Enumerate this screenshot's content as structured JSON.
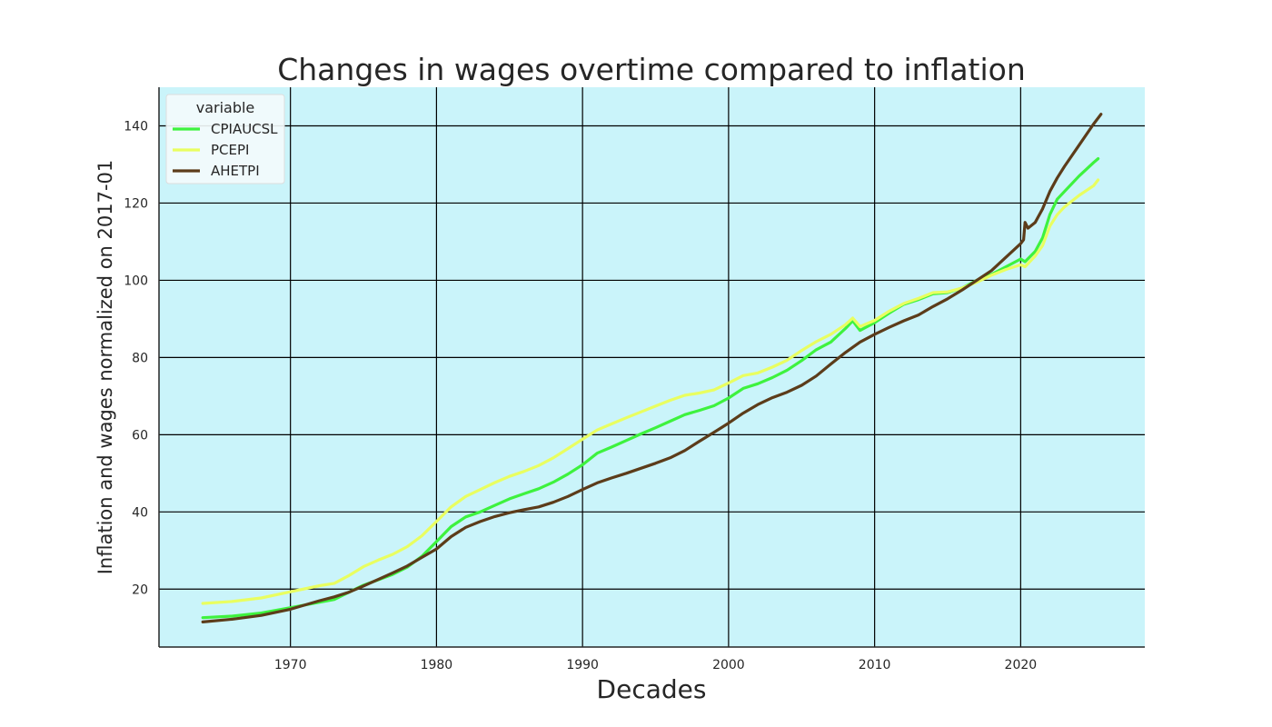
{
  "chart_data": {
    "type": "line",
    "title": "Changes in wages overtime compared to inflation",
    "xlabel": "Decades",
    "ylabel": "Inflation and wages normalized on 2017-01",
    "xlim": [
      1961,
      2028.5
    ],
    "ylim": [
      5,
      150
    ],
    "x_ticks": [
      1970,
      1980,
      1990,
      2000,
      2010,
      2020
    ],
    "y_ticks": [
      20,
      40,
      60,
      80,
      100,
      120,
      140
    ],
    "grid": true,
    "legend": {
      "title": "variable",
      "placement": "top-left"
    },
    "colors": {
      "plot_background": "#caf4fa",
      "grid": "#000000"
    },
    "series": [
      {
        "name": "CPIAUCSL",
        "color": "#3ef23e",
        "points": [
          [
            1964.0,
            12.6
          ],
          [
            1966.0,
            13.0
          ],
          [
            1968.0,
            13.8
          ],
          [
            1970.0,
            15.2
          ],
          [
            1972.0,
            16.6
          ],
          [
            1973.0,
            17.3
          ],
          [
            1974.0,
            19.2
          ],
          [
            1975.0,
            21.0
          ],
          [
            1976.0,
            22.4
          ],
          [
            1977.0,
            23.8
          ],
          [
            1978.0,
            25.7
          ],
          [
            1979.0,
            28.5
          ],
          [
            1980.0,
            32.3
          ],
          [
            1981.0,
            36.2
          ],
          [
            1982.0,
            38.7
          ],
          [
            1983.0,
            40.0
          ],
          [
            1984.0,
            41.7
          ],
          [
            1985.0,
            43.4
          ],
          [
            1986.0,
            44.7
          ],
          [
            1987.0,
            46.0
          ],
          [
            1988.0,
            47.7
          ],
          [
            1989.0,
            49.8
          ],
          [
            1990.0,
            52.2
          ],
          [
            1991.0,
            55.2
          ],
          [
            1992.0,
            56.8
          ],
          [
            1993.0,
            58.5
          ],
          [
            1994.0,
            60.2
          ],
          [
            1995.0,
            61.8
          ],
          [
            1996.0,
            63.5
          ],
          [
            1997.0,
            65.2
          ],
          [
            1998.0,
            66.3
          ],
          [
            1999.0,
            67.5
          ],
          [
            2000.0,
            69.5
          ],
          [
            2001.0,
            72.0
          ],
          [
            2002.0,
            73.2
          ],
          [
            2003.0,
            74.8
          ],
          [
            2004.0,
            76.7
          ],
          [
            2005.0,
            79.2
          ],
          [
            2006.0,
            82.0
          ],
          [
            2007.0,
            84.0
          ],
          [
            2008.0,
            87.5
          ],
          [
            2008.5,
            89.5
          ],
          [
            2009.0,
            87.0
          ],
          [
            2010.0,
            89.0
          ],
          [
            2011.0,
            91.5
          ],
          [
            2012.0,
            93.8
          ],
          [
            2013.0,
            95.0
          ],
          [
            2014.0,
            96.5
          ],
          [
            2015.0,
            96.8
          ],
          [
            2016.0,
            98.0
          ],
          [
            2017.0,
            100.0
          ],
          [
            2018.0,
            101.5
          ],
          [
            2019.0,
            103.5
          ],
          [
            2020.0,
            105.5
          ],
          [
            2020.3,
            104.8
          ],
          [
            2021.0,
            107.5
          ],
          [
            2021.5,
            111.0
          ],
          [
            2022.0,
            117.0
          ],
          [
            2022.5,
            121.0
          ],
          [
            2023.0,
            123.0
          ],
          [
            2024.0,
            127.0
          ],
          [
            2025.0,
            130.5
          ],
          [
            2025.3,
            131.5
          ]
        ]
      },
      {
        "name": "PCEPI",
        "color": "#e9fe60",
        "points": [
          [
            1964.0,
            16.3
          ],
          [
            1966.0,
            16.8
          ],
          [
            1968.0,
            17.7
          ],
          [
            1970.0,
            19.3
          ],
          [
            1972.0,
            20.9
          ],
          [
            1973.0,
            21.5
          ],
          [
            1974.0,
            23.5
          ],
          [
            1975.0,
            25.8
          ],
          [
            1976.0,
            27.5
          ],
          [
            1977.0,
            29.0
          ],
          [
            1978.0,
            31.0
          ],
          [
            1979.0,
            33.8
          ],
          [
            1980.0,
            37.5
          ],
          [
            1981.0,
            41.3
          ],
          [
            1982.0,
            44.0
          ],
          [
            1983.0,
            45.8
          ],
          [
            1984.0,
            47.6
          ],
          [
            1985.0,
            49.2
          ],
          [
            1986.0,
            50.5
          ],
          [
            1987.0,
            52.0
          ],
          [
            1988.0,
            54.0
          ],
          [
            1989.0,
            56.4
          ],
          [
            1990.0,
            58.8
          ],
          [
            1991.0,
            61.2
          ],
          [
            1992.0,
            62.8
          ],
          [
            1993.0,
            64.4
          ],
          [
            1994.0,
            65.9
          ],
          [
            1995.0,
            67.4
          ],
          [
            1996.0,
            68.9
          ],
          [
            1997.0,
            70.2
          ],
          [
            1998.0,
            70.8
          ],
          [
            1999.0,
            71.6
          ],
          [
            2000.0,
            73.4
          ],
          [
            2001.0,
            75.3
          ],
          [
            2002.0,
            76.0
          ],
          [
            2003.0,
            77.5
          ],
          [
            2004.0,
            79.3
          ],
          [
            2005.0,
            81.8
          ],
          [
            2006.0,
            84.1
          ],
          [
            2007.0,
            86.0
          ],
          [
            2008.0,
            88.5
          ],
          [
            2008.5,
            90.2
          ],
          [
            2009.0,
            88.0
          ],
          [
            2010.0,
            89.6
          ],
          [
            2011.0,
            92.0
          ],
          [
            2012.0,
            94.0
          ],
          [
            2013.0,
            95.3
          ],
          [
            2014.0,
            96.8
          ],
          [
            2015.0,
            97.0
          ],
          [
            2016.0,
            98.0
          ],
          [
            2017.0,
            99.5
          ],
          [
            2018.0,
            101.3
          ],
          [
            2019.0,
            102.8
          ],
          [
            2020.0,
            104.0
          ],
          [
            2020.3,
            103.5
          ],
          [
            2021.0,
            106.3
          ],
          [
            2021.5,
            109.0
          ],
          [
            2022.0,
            114.0
          ],
          [
            2022.5,
            117.0
          ],
          [
            2023.0,
            119.0
          ],
          [
            2024.0,
            122.0
          ],
          [
            2025.0,
            124.5
          ],
          [
            2025.3,
            126.0
          ]
        ]
      },
      {
        "name": "AHETPI",
        "color": "#5c3c1a",
        "points": [
          [
            1964.0,
            11.5
          ],
          [
            1966.0,
            12.2
          ],
          [
            1968.0,
            13.2
          ],
          [
            1970.0,
            14.8
          ],
          [
            1972.0,
            17.0
          ],
          [
            1973.0,
            18.0
          ],
          [
            1974.0,
            19.2
          ],
          [
            1975.0,
            20.8
          ],
          [
            1976.0,
            22.5
          ],
          [
            1977.0,
            24.2
          ],
          [
            1978.0,
            26.0
          ],
          [
            1979.0,
            28.2
          ],
          [
            1980.0,
            30.4
          ],
          [
            1981.0,
            33.6
          ],
          [
            1982.0,
            36.0
          ],
          [
            1983.0,
            37.5
          ],
          [
            1984.0,
            38.8
          ],
          [
            1985.0,
            39.8
          ],
          [
            1986.0,
            40.6
          ],
          [
            1987.0,
            41.3
          ],
          [
            1988.0,
            42.5
          ],
          [
            1989.0,
            44.0
          ],
          [
            1990.0,
            45.8
          ],
          [
            1991.0,
            47.5
          ],
          [
            1992.0,
            48.8
          ],
          [
            1993.0,
            50.0
          ],
          [
            1994.0,
            51.3
          ],
          [
            1995.0,
            52.6
          ],
          [
            1996.0,
            54.0
          ],
          [
            1997.0,
            55.9
          ],
          [
            1998.0,
            58.3
          ],
          [
            1999.0,
            60.6
          ],
          [
            2000.0,
            63.0
          ],
          [
            2001.0,
            65.6
          ],
          [
            2002.0,
            67.8
          ],
          [
            2003.0,
            69.6
          ],
          [
            2004.0,
            71.0
          ],
          [
            2005.0,
            72.8
          ],
          [
            2006.0,
            75.2
          ],
          [
            2007.0,
            78.3
          ],
          [
            2008.0,
            81.3
          ],
          [
            2009.0,
            84.0
          ],
          [
            2010.0,
            86.0
          ],
          [
            2011.0,
            87.8
          ],
          [
            2012.0,
            89.5
          ],
          [
            2013.0,
            91.0
          ],
          [
            2014.0,
            93.2
          ],
          [
            2015.0,
            95.2
          ],
          [
            2016.0,
            97.5
          ],
          [
            2017.0,
            100.0
          ],
          [
            2018.0,
            102.5
          ],
          [
            2019.0,
            106.0
          ],
          [
            2020.0,
            109.5
          ],
          [
            2020.2,
            110.5
          ],
          [
            2020.3,
            115.0
          ],
          [
            2020.5,
            113.5
          ],
          [
            2021.0,
            115.0
          ],
          [
            2021.5,
            118.5
          ],
          [
            2022.0,
            123.0
          ],
          [
            2022.5,
            126.5
          ],
          [
            2023.0,
            129.5
          ],
          [
            2024.0,
            135.0
          ],
          [
            2025.0,
            140.5
          ],
          [
            2025.5,
            143.0
          ]
        ]
      }
    ]
  }
}
